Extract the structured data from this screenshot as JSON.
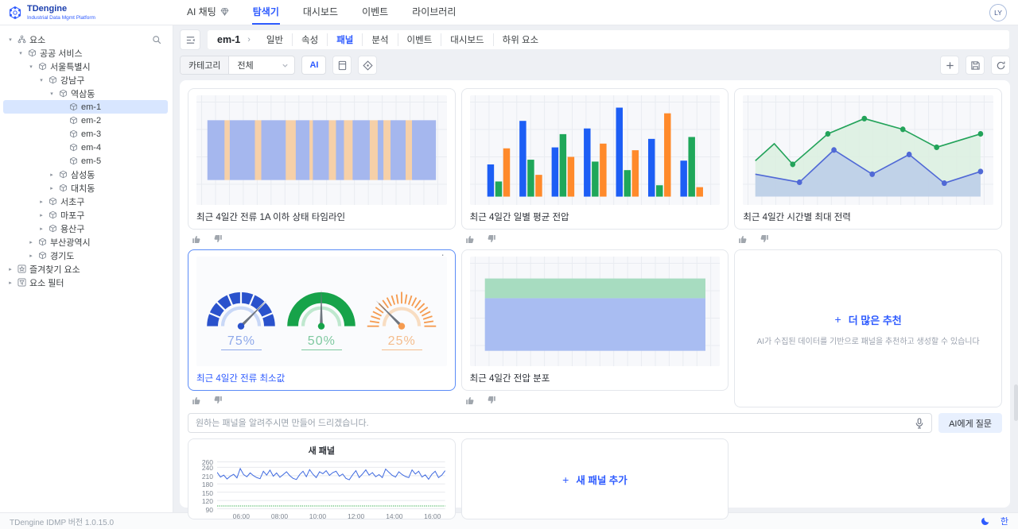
{
  "app": {
    "brand": "TDengine",
    "brand_sub": "Industrial Data Mgmt Platform",
    "avatar": "LY",
    "nav": [
      {
        "label": "AI 채팅",
        "icon": "gem",
        "active": false
      },
      {
        "label": "탐색기",
        "active": true
      },
      {
        "label": "대시보드",
        "active": false
      },
      {
        "label": "이벤트",
        "active": false
      },
      {
        "label": "라이브러리",
        "active": false
      }
    ]
  },
  "sidebar": {
    "tree": [
      {
        "label": "요소",
        "depth": 0,
        "caret": "expanded",
        "icon": "root",
        "search": true
      },
      {
        "label": "공공 서비스",
        "depth": 1,
        "caret": "expanded",
        "icon": "node"
      },
      {
        "label": "서울특별시",
        "depth": 2,
        "caret": "expanded",
        "icon": "node"
      },
      {
        "label": "강남구",
        "depth": 3,
        "caret": "expanded",
        "icon": "node"
      },
      {
        "label": "역삼동",
        "depth": 4,
        "caret": "expanded",
        "icon": "node"
      },
      {
        "label": "em-1",
        "depth": 5,
        "caret": "none",
        "icon": "node",
        "selected": true
      },
      {
        "label": "em-2",
        "depth": 5,
        "caret": "none",
        "icon": "node"
      },
      {
        "label": "em-3",
        "depth": 5,
        "caret": "none",
        "icon": "node"
      },
      {
        "label": "em-4",
        "depth": 5,
        "caret": "none",
        "icon": "node"
      },
      {
        "label": "em-5",
        "depth": 5,
        "caret": "none",
        "icon": "node"
      },
      {
        "label": "삼성동",
        "depth": 4,
        "caret": "collapsed",
        "icon": "node"
      },
      {
        "label": "대치동",
        "depth": 4,
        "caret": "collapsed",
        "icon": "node"
      },
      {
        "label": "서초구",
        "depth": 3,
        "caret": "collapsed",
        "icon": "node"
      },
      {
        "label": "마포구",
        "depth": 3,
        "caret": "collapsed",
        "icon": "node"
      },
      {
        "label": "용산구",
        "depth": 3,
        "caret": "collapsed",
        "icon": "node"
      },
      {
        "label": "부산광역시",
        "depth": 2,
        "caret": "collapsed",
        "icon": "node"
      },
      {
        "label": "경기도",
        "depth": 2,
        "caret": "collapsed",
        "icon": "node"
      },
      {
        "label": "즐겨찾기 요소",
        "depth": 0,
        "caret": "collapsed",
        "icon": "star"
      },
      {
        "label": "요소 필터",
        "depth": 0,
        "caret": "collapsed",
        "icon": "filter"
      }
    ]
  },
  "toolbar": {
    "entity": "em-1",
    "tabs": [
      "일반",
      "속성",
      "패널",
      "분석",
      "이벤트",
      "대시보드",
      "하위 요소"
    ],
    "active_tab": "패널",
    "category_label": "카테고리",
    "category_value": "전체",
    "ai_button_label": "AI"
  },
  "recommend": {
    "title": "더 많은 추천",
    "plus": "+",
    "subtitle": "AI가 수집된 데이터를 기반으로 패널을 추천하고 생성할 수 있습니다"
  },
  "ask": {
    "placeholder": "원하는 패널을 알려주시면 만들어 드리겠습니다.",
    "button_label": "AI에게 질문"
  },
  "add_panel": {
    "plus": "+",
    "label": "새 패널 추가"
  },
  "footer": {
    "version": "TDengine IDMP 버전 1.0.15.0",
    "lang": "한"
  },
  "colors": {
    "primary": "#2e5bff",
    "bar_blue": "#1d5ef5",
    "bar_green": "#1fa75a",
    "bar_orange": "#ff8a2b"
  },
  "chart_data": [
    {
      "type": "timeline",
      "title": "최근 4일간 전류 1A 이하 상태 타임라인",
      "states": {
        "on": "#a5b7ee",
        "off": "#f6d0a8"
      },
      "segments": [
        {
          "state": "on",
          "w": 7.5
        },
        {
          "state": "off",
          "w": 2.3
        },
        {
          "state": "on",
          "w": 11.0
        },
        {
          "state": "off",
          "w": 2.8
        },
        {
          "state": "on",
          "w": 10.7
        },
        {
          "state": "off",
          "w": 4.4
        },
        {
          "state": "on",
          "w": 6.0
        },
        {
          "state": "off",
          "w": 1.5
        },
        {
          "state": "on",
          "w": 7.0
        },
        {
          "state": "off",
          "w": 3.1
        },
        {
          "state": "on",
          "w": 3.5
        },
        {
          "state": "off",
          "w": 3.8
        },
        {
          "state": "on",
          "w": 7.5
        },
        {
          "state": "off",
          "w": 3.5
        },
        {
          "state": "on",
          "w": 2.5
        },
        {
          "state": "off",
          "w": 3.1
        },
        {
          "state": "on",
          "w": 6.6
        },
        {
          "state": "off",
          "w": 2.8
        },
        {
          "state": "on",
          "w": 10.4
        }
      ]
    },
    {
      "type": "bar",
      "title": "최근 4일간 일별 평균 전압",
      "categories": [
        "1",
        "2",
        "3",
        "4",
        "5",
        "6",
        "7"
      ],
      "ylim": [
        0,
        100
      ],
      "series": [
        {
          "name": "series-blue",
          "color": "#1d5ef5",
          "values": [
            34,
            80,
            52,
            72,
            94,
            61,
            38
          ]
        },
        {
          "name": "series-green",
          "color": "#1fa75a",
          "values": [
            16,
            39,
            66,
            37,
            28,
            12,
            63
          ]
        },
        {
          "name": "series-orange",
          "color": "#ff8a2b",
          "values": [
            51,
            23,
            42,
            56,
            49,
            88,
            10
          ]
        }
      ]
    },
    {
      "type": "area",
      "title": "최근 4일간 시간별 최대 전력",
      "ylim": [
        0,
        100
      ],
      "series": [
        {
          "name": "max",
          "color": "#23a35a",
          "fill": "#dcefe0",
          "x": [
            0,
            8.4,
            16.6,
            32.2,
            48.4,
            65.5,
            80.5,
            100
          ],
          "y": [
            40,
            59,
            36,
            70,
            87,
            75,
            55,
            70
          ],
          "dots": [
            2,
            3,
            4,
            5,
            6,
            7
          ]
        },
        {
          "name": "avg",
          "color": "#5069d6",
          "fill": "#bccde8",
          "x": [
            0,
            19.6,
            34.9,
            51.9,
            68.3,
            83.9,
            100
          ],
          "y": [
            25,
            16,
            52,
            25,
            47,
            15,
            28
          ],
          "dots": [
            1,
            2,
            3,
            4,
            5,
            6
          ]
        }
      ]
    },
    {
      "type": "gauge",
      "title": "최근 4일간 전류 최소값",
      "selected": true,
      "gauges": [
        {
          "value": 75,
          "label": "75%",
          "style": "segmented",
          "color": "#2a52cc",
          "inner": "#c9d8f7",
          "text_color": "#8ea8ea"
        },
        {
          "value": 50,
          "label": "50%",
          "style": "solid",
          "color": "#17a34a",
          "inner": "#bfe8cf",
          "text_color": "#7fc9a0"
        },
        {
          "value": 25,
          "label": "25%",
          "style": "ticks",
          "color": "#f59b50",
          "inner": "#f8ddc2",
          "text_color": "#f4bd8d"
        }
      ]
    },
    {
      "type": "band",
      "title": "최근 4일간 전압 분포",
      "bands": [
        {
          "name": "upper",
          "color": "#a7dcc0",
          "top": 20,
          "bottom": 38
        },
        {
          "name": "lower",
          "color": "#a9bdf2",
          "top": 38,
          "bottom": 86
        }
      ]
    },
    {
      "type": "line",
      "title": "새 패널",
      "ylim": [
        80,
        270
      ],
      "y_ticks": [
        260,
        240,
        210,
        180,
        150,
        120,
        90
      ],
      "x_ticks": [
        {
          "label": "06:00",
          "pos": 10.5
        },
        {
          "label": "08:00",
          "pos": 27.2
        },
        {
          "label": "10:00",
          "pos": 43.8
        },
        {
          "label": "12:00",
          "pos": 60.5
        },
        {
          "label": "14:00",
          "pos": 77.2
        },
        {
          "label": "16:00",
          "pos": 93.8
        }
      ],
      "line_color": "#3f6ae0",
      "threshold": {
        "value": 100,
        "color": "#3db154",
        "dashed": true
      },
      "values": [
        222,
        205,
        212,
        198,
        208,
        215,
        202,
        236,
        214,
        206,
        220,
        210,
        203,
        199,
        226,
        212,
        230,
        208,
        220,
        204,
        214,
        224,
        210,
        200,
        196,
        214,
        226,
        206,
        232,
        215,
        203,
        224,
        217,
        228,
        211,
        221,
        226,
        208,
        216,
        200,
        195,
        213,
        228,
        203,
        216,
        231,
        212,
        221,
        206,
        214,
        203,
        234,
        222,
        211,
        205,
        224,
        214,
        207,
        203,
        231,
        216,
        226,
        205,
        213,
        197,
        215,
        226,
        203,
        212,
        228
      ]
    }
  ]
}
